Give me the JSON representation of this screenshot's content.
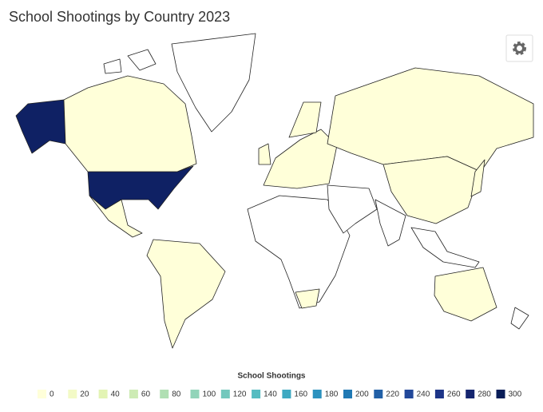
{
  "chart_data": {
    "type": "choropleth",
    "title": "School Shootings by Country 2023",
    "legend_title": "School Shootings",
    "scale": [
      {
        "value": 0,
        "color": "#ffffd9"
      },
      {
        "value": 20,
        "color": "#f3fac6"
      },
      {
        "value": 40,
        "color": "#e3f4b4"
      },
      {
        "value": 60,
        "color": "#cdebb4"
      },
      {
        "value": 80,
        "color": "#b0dfb3"
      },
      {
        "value": 100,
        "color": "#91d4b9"
      },
      {
        "value": 120,
        "color": "#73c8bd"
      },
      {
        "value": 140,
        "color": "#55bcc1"
      },
      {
        "value": 160,
        "color": "#3ea9c2"
      },
      {
        "value": 180,
        "color": "#2c92bf"
      },
      {
        "value": 200,
        "color": "#2079b4"
      },
      {
        "value": 220,
        "color": "#2160a7"
      },
      {
        "value": 240,
        "color": "#22489a"
      },
      {
        "value": 260,
        "color": "#1d3588"
      },
      {
        "value": 280,
        "color": "#15256f"
      },
      {
        "value": 300,
        "color": "#081d58"
      }
    ],
    "values": [
      290,
      0,
      0,
      0,
      0,
      0,
      0,
      0,
      0,
      0,
      0,
      0
    ]
  }
}
